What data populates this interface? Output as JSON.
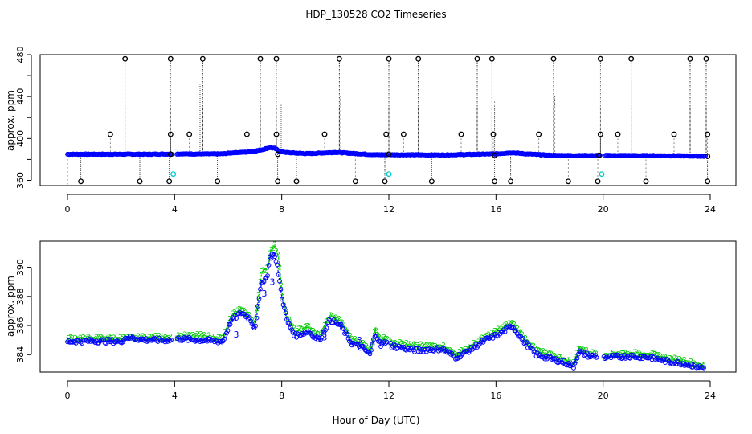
{
  "title": "HDP_130528  CO2 Timeseries",
  "xlabel": "Hour of Day (UTC)",
  "colors": {
    "series_primary": "#0000ff",
    "series_secondary": "#00cc00",
    "outlier_marker": "#000000",
    "cyan_marker": "#00cccc",
    "spike_line": "#000000"
  },
  "chart_data": [
    {
      "type": "scatter",
      "panel": "top",
      "ylabel": "approx. ppm",
      "xlim": [
        0,
        24
      ],
      "ylim": [
        355,
        480
      ],
      "x_ticks": [
        "0",
        "4",
        "8",
        "12",
        "16",
        "20",
        "24"
      ],
      "y_ticks": [
        "360",
        "400",
        "440",
        "480"
      ],
      "y_minor_ticks": [
        380,
        420,
        460
      ],
      "baseline_profile": [
        [
          0.0,
          385
        ],
        [
          1.0,
          385
        ],
        [
          2.0,
          385
        ],
        [
          3.0,
          385
        ],
        [
          4.0,
          385.3
        ],
        [
          5.0,
          385.2
        ],
        [
          5.8,
          385.3
        ],
        [
          6.2,
          386.5
        ],
        [
          6.7,
          387.0
        ],
        [
          7.0,
          388.0
        ],
        [
          7.3,
          389.5
        ],
        [
          7.55,
          391.3
        ],
        [
          7.75,
          390.5
        ],
        [
          7.9,
          388.0
        ],
        [
          8.2,
          386.5
        ],
        [
          9.0,
          385.5
        ],
        [
          10.0,
          386.8
        ],
        [
          10.8,
          385.5
        ],
        [
          11.5,
          384.5
        ],
        [
          12.0,
          384.5
        ],
        [
          13.0,
          384.4
        ],
        [
          14.0,
          384.3
        ],
        [
          15.0,
          384.8
        ],
        [
          16.0,
          385.3
        ],
        [
          16.6,
          386.5
        ],
        [
          17.0,
          385.5
        ],
        [
          18.0,
          384.0
        ],
        [
          19.0,
          383.7
        ],
        [
          20.0,
          383.8
        ],
        [
          21.0,
          383.7
        ],
        [
          22.0,
          383.6
        ],
        [
          23.0,
          383.4
        ],
        [
          23.8,
          383.0
        ]
      ],
      "gap_hours": [
        [
          3.9,
          4.05
        ],
        [
          11.95,
          12.05
        ],
        [
          19.9,
          20.05
        ]
      ],
      "high_outliers": [
        2.15,
        3.85,
        5.05,
        7.2,
        7.8,
        10.15,
        12.0,
        13.1,
        15.3,
        15.85,
        18.15,
        19.9,
        21.05,
        23.25,
        23.85
      ],
      "mid_outliers": [
        1.6,
        3.85,
        4.55,
        6.7,
        7.8,
        9.6,
        11.9,
        12.55,
        14.7,
        15.9,
        17.6,
        19.9,
        20.55,
        22.65,
        23.9
      ],
      "low_outliers": [
        0.5,
        2.7,
        3.8,
        5.6,
        7.85,
        8.55,
        10.75,
        11.85,
        13.6,
        15.95,
        16.55,
        18.7,
        19.8,
        21.6,
        23.9
      ],
      "cyan_points": [
        [
          3.95,
          366
        ],
        [
          12.0,
          366
        ],
        [
          19.95,
          366
        ]
      ],
      "spike_traces": [
        {
          "x": 4.95,
          "top": 452,
          "bottom": 385
        },
        {
          "x": 7.98,
          "top": 432,
          "bottom": 385
        },
        {
          "x": 10.2,
          "top": 440,
          "bottom": 385
        },
        {
          "x": 15.95,
          "top": 435,
          "bottom": 385
        },
        {
          "x": 18.2,
          "top": 440,
          "bottom": 385
        },
        {
          "x": 21.05,
          "top": 455,
          "bottom": 385
        }
      ]
    },
    {
      "type": "scatter",
      "panel": "bottom",
      "ylabel": "approx. ppm",
      "xlim": [
        0,
        24
      ],
      "ylim": [
        382.8,
        391.8
      ],
      "x_ticks": [
        "0",
        "4",
        "8",
        "12",
        "16",
        "20",
        "24"
      ],
      "y_ticks": [
        "384",
        "386",
        "388",
        "390"
      ],
      "series": [
        {
          "marker": "circle",
          "profile": [
            [
              0.0,
              384.9
            ],
            [
              1.0,
              384.95
            ],
            [
              2.0,
              384.9
            ],
            [
              2.2,
              385.2
            ],
            [
              3.0,
              385.0
            ],
            [
              3.85,
              385.0
            ],
            [
              4.05,
              385.1
            ],
            [
              5.0,
              385.0
            ],
            [
              5.8,
              384.9
            ],
            [
              6.1,
              386.3
            ],
            [
              6.5,
              386.9
            ],
            [
              6.8,
              386.5
            ],
            [
              7.0,
              385.8
            ],
            [
              7.25,
              389.0
            ],
            [
              7.45,
              389.3
            ],
            [
              7.55,
              390.6
            ],
            [
              7.7,
              391.0
            ],
            [
              7.85,
              389.9
            ],
            [
              8.0,
              388.0
            ],
            [
              8.2,
              386.3
            ],
            [
              8.5,
              385.3
            ],
            [
              9.0,
              385.6
            ],
            [
              9.4,
              385.0
            ],
            [
              9.8,
              386.4
            ],
            [
              10.2,
              386.0
            ],
            [
              10.6,
              384.8
            ],
            [
              11.0,
              384.5
            ],
            [
              11.3,
              384.0
            ],
            [
              11.5,
              385.5
            ],
            [
              11.7,
              384.6
            ],
            [
              11.95,
              385.0
            ],
            [
              12.1,
              384.6
            ],
            [
              13.0,
              384.3
            ],
            [
              14.0,
              384.4
            ],
            [
              14.5,
              383.8
            ],
            [
              15.0,
              384.3
            ],
            [
              15.6,
              385.0
            ],
            [
              16.2,
              385.5
            ],
            [
              16.6,
              386.0
            ],
            [
              17.0,
              385.0
            ],
            [
              17.5,
              384.0
            ],
            [
              18.5,
              383.5
            ],
            [
              18.9,
              383.2
            ],
            [
              19.1,
              384.2
            ],
            [
              19.5,
              383.9
            ],
            [
              19.75,
              383.9
            ],
            [
              20.05,
              383.8
            ],
            [
              21.0,
              383.9
            ],
            [
              21.8,
              383.8
            ],
            [
              22.5,
              383.5
            ],
            [
              23.0,
              383.4
            ],
            [
              23.75,
              383.1
            ]
          ]
        },
        {
          "marker": "digit-2",
          "profile": [
            [
              0.0,
              385.1
            ],
            [
              1.0,
              385.15
            ],
            [
              2.0,
              385.1
            ],
            [
              3.0,
              385.2
            ],
            [
              3.85,
              385.2
            ],
            [
              4.05,
              385.25
            ],
            [
              5.0,
              385.3
            ],
            [
              5.8,
              385.1
            ],
            [
              6.1,
              386.6
            ],
            [
              6.5,
              387.2
            ],
            [
              6.8,
              386.6
            ],
            [
              7.0,
              386.2
            ],
            [
              7.25,
              389.6
            ],
            [
              7.45,
              390.0
            ],
            [
              7.6,
              391.3
            ],
            [
              7.75,
              391.5
            ],
            [
              7.9,
              390.5
            ],
            [
              8.0,
              388.4
            ],
            [
              8.2,
              386.6
            ],
            [
              8.5,
              385.6
            ],
            [
              9.0,
              385.9
            ],
            [
              9.4,
              385.3
            ],
            [
              9.8,
              386.7
            ],
            [
              10.2,
              386.3
            ],
            [
              10.6,
              385.1
            ],
            [
              11.0,
              384.8
            ],
            [
              11.3,
              384.3
            ],
            [
              11.5,
              385.8
            ],
            [
              11.7,
              385.0
            ],
            [
              11.95,
              385.2
            ],
            [
              12.1,
              384.9
            ],
            [
              13.0,
              384.6
            ],
            [
              14.0,
              384.6
            ],
            [
              14.5,
              384.0
            ],
            [
              15.0,
              384.5
            ],
            [
              15.6,
              385.2
            ],
            [
              16.2,
              385.8
            ],
            [
              16.6,
              386.2
            ],
            [
              17.0,
              385.3
            ],
            [
              17.5,
              384.3
            ],
            [
              18.5,
              383.7
            ],
            [
              18.9,
              383.4
            ],
            [
              19.1,
              384.5
            ],
            [
              19.5,
              384.1
            ],
            [
              19.75,
              384.1
            ],
            [
              20.05,
              384.0
            ],
            [
              21.0,
              384.1
            ],
            [
              21.8,
              384.0
            ],
            [
              22.5,
              383.7
            ],
            [
              23.0,
              383.6
            ],
            [
              23.75,
              383.2
            ]
          ]
        }
      ],
      "digit_3_points": [
        [
          6.3,
          385.4
        ],
        [
          7.35,
          388.2
        ],
        [
          7.65,
          389.0
        ],
        [
          9.6,
          385.2
        ],
        [
          10.9,
          385.0
        ]
      ]
    }
  ]
}
